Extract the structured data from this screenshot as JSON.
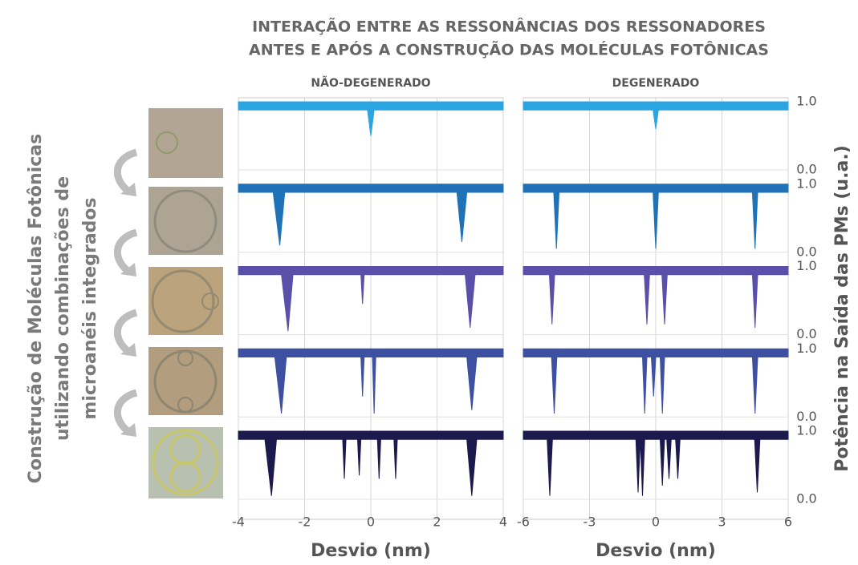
{
  "header": {
    "title_lines": [
      "INTERAÇÃO ENTRE AS RESSONÂNCIAS DOS RESSONADORES",
      "ANTES E APÓS A CONSTRUÇÃO DAS MOLÉCULAS FOTÔNICAS"
    ]
  },
  "side_label": [
    "Construção de Moléculas Fotônicas",
    "utilizando combinações de",
    "microanéis integrados"
  ],
  "chart_data": [
    {
      "type": "line",
      "title": "NÃO-DEGENERADO",
      "xlabel": "Desvio (nm)",
      "xlim": [
        -4,
        4
      ],
      "xticks": [
        -4,
        -2,
        0,
        2,
        4
      ],
      "ylim": [
        0,
        1
      ],
      "yticks": [
        {
          "value": 0,
          "label": "0.0"
        },
        {
          "value": 1,
          "label": "1.0"
        }
      ],
      "grid": true,
      "series": [
        {
          "color": "#2ba4e2",
          "x": [
            -4,
            -0.1,
            0,
            0.1,
            4
          ],
          "values": [
            0.88,
            0.88,
            0.5,
            0.88,
            0.88
          ]
        },
        {
          "color": "#1f72b8",
          "x": [
            -4,
            -2.95,
            -2.75,
            -2.6,
            2.6,
            2.75,
            2.9,
            4
          ],
          "values": [
            0.88,
            0.88,
            0.1,
            0.88,
            0.88,
            0.15,
            0.88,
            0.88
          ]
        },
        {
          "color": "#5a50aa",
          "x": [
            -4,
            -2.7,
            -2.5,
            -2.35,
            -0.3,
            -0.25,
            -0.2,
            2.85,
            3.0,
            3.15,
            4
          ],
          "values": [
            0.88,
            0.88,
            0.05,
            0.88,
            0.88,
            0.45,
            0.88,
            0.88,
            0.1,
            0.88,
            0.88
          ]
        },
        {
          "color": "#3e50a2",
          "x": [
            -4,
            -2.9,
            -2.7,
            -2.55,
            -0.3,
            -0.25,
            -0.2,
            0.05,
            0.1,
            0.15,
            2.9,
            3.05,
            3.2,
            4
          ],
          "values": [
            0.88,
            0.88,
            0.05,
            0.88,
            0.88,
            0.3,
            0.88,
            0.88,
            0.05,
            0.88,
            0.88,
            0.1,
            0.88,
            0.88
          ]
        },
        {
          "color": "#1c1a4c",
          "x": [
            -4,
            -3.2,
            -3.0,
            -2.85,
            -0.85,
            -0.8,
            -0.75,
            -0.4,
            -0.35,
            -0.3,
            0.2,
            0.25,
            0.3,
            0.7,
            0.75,
            0.8,
            2.9,
            3.05,
            3.2,
            4
          ],
          "values": [
            0.88,
            0.88,
            0.05,
            0.88,
            0.88,
            0.3,
            0.88,
            0.88,
            0.35,
            0.88,
            0.88,
            0.3,
            0.88,
            0.88,
            0.3,
            0.88,
            0.88,
            0.05,
            0.88,
            0.88
          ]
        }
      ]
    },
    {
      "type": "line",
      "title": "DEGENERADO",
      "xlabel": "Desvio (nm)",
      "ylabel": "Potência na Saída das PMs (u.a.)",
      "xlim": [
        -6,
        6
      ],
      "xticks": [
        -6,
        -3,
        0,
        3,
        6
      ],
      "ylim": [
        0,
        1
      ],
      "yticks": [
        {
          "value": 0,
          "label": "0.0"
        },
        {
          "value": 1,
          "label": "1.0"
        }
      ],
      "grid": true,
      "series": [
        {
          "color": "#2ba4e2",
          "x": [
            -6,
            -0.12,
            0,
            0.12,
            6
          ],
          "values": [
            0.88,
            0.88,
            0.6,
            0.88,
            0.88
          ]
        },
        {
          "color": "#1f72b8",
          "x": [
            -6,
            -4.62,
            -4.5,
            -4.38,
            -0.12,
            0,
            0.12,
            4.38,
            4.5,
            4.62,
            6
          ],
          "values": [
            0.88,
            0.88,
            0.05,
            0.88,
            0.88,
            0.05,
            0.88,
            0.88,
            0.05,
            0.88,
            0.88
          ]
        },
        {
          "color": "#5a50aa",
          "x": [
            -6,
            -4.82,
            -4.7,
            -4.58,
            -0.52,
            -0.4,
            -0.28,
            0.28,
            0.4,
            0.52,
            4.38,
            4.5,
            4.62,
            6
          ],
          "values": [
            0.88,
            0.88,
            0.15,
            0.88,
            0.88,
            0.15,
            0.88,
            0.88,
            0.15,
            0.88,
            0.88,
            0.1,
            0.88,
            0.88
          ]
        },
        {
          "color": "#3e50a2",
          "x": [
            -6,
            -4.72,
            -4.6,
            -4.48,
            -0.6,
            -0.5,
            -0.4,
            -0.2,
            -0.1,
            0,
            0.2,
            0.3,
            0.4,
            4.38,
            4.5,
            4.62,
            6
          ],
          "values": [
            0.88,
            0.88,
            0.05,
            0.88,
            0.88,
            0.05,
            0.88,
            0.88,
            0.3,
            0.88,
            0.88,
            0.05,
            0.88,
            0.88,
            0.05,
            0.88,
            0.88
          ]
        },
        {
          "color": "#1c1a4c",
          "x": [
            -6,
            -4.92,
            -4.8,
            -4.68,
            -0.9,
            -0.8,
            -0.7,
            -0.6,
            -0.5,
            0.2,
            0.3,
            0.4,
            0.5,
            0.6,
            0.7,
            0.9,
            1.0,
            1.1,
            4.48,
            4.6,
            4.72,
            6
          ],
          "values": [
            0.88,
            0.88,
            0.05,
            0.88,
            0.88,
            0.1,
            0.88,
            0.05,
            0.88,
            0.88,
            0.2,
            0.88,
            0.88,
            0.3,
            0.88,
            0.88,
            0.3,
            0.88,
            0.88,
            0.1,
            0.88,
            0.88
          ]
        }
      ]
    }
  ]
}
